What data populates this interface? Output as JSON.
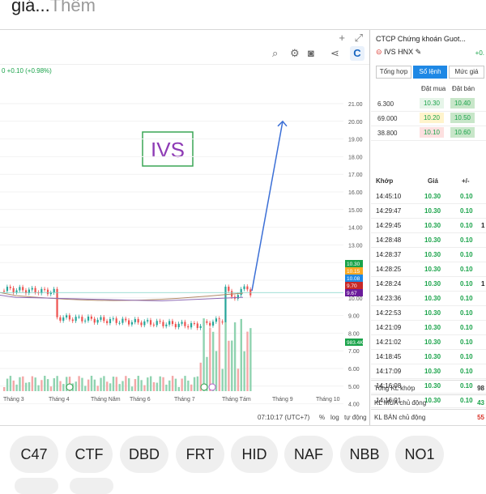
{
  "top_text": {
    "main": "giá...",
    "more": "Thêm"
  },
  "chart_toolbar": {
    "plus": "+",
    "expand": "⤢"
  },
  "chart": {
    "price_change": "0 +0.10 (+0.98%)",
    "annotation": "IVS",
    "y_ticks": [
      "21.00",
      "20.00",
      "19.00",
      "18.00",
      "17.00",
      "16.00",
      "15.00",
      "14.00",
      "13.00",
      "12.00",
      "11.00",
      "10.00",
      "9.00",
      "8.00",
      "7.00",
      "6.00",
      "5.00",
      "4.00"
    ],
    "x_ticks": [
      "Tháng 3",
      "Tháng 4",
      "Tháng Năm",
      "Tháng 6",
      "Tháng 7",
      "Tháng Tám",
      "Tháng 9",
      "Tháng 10"
    ],
    "price_tags": [
      {
        "label": "10.30",
        "color": "#1aa34a"
      },
      {
        "label": "10.15",
        "color": "#f9a825"
      },
      {
        "label": "10.08",
        "color": "#1e88e5"
      },
      {
        "label": "9.70",
        "color": "#c62828"
      },
      {
        "label": "9.67",
        "color": "#6a1b9a"
      },
      {
        "label": "983.4K",
        "color": "#1aa34a"
      }
    ],
    "time": "07:10:17 (UTC+7)",
    "percent_btn": "%",
    "log_btn": "log",
    "auto_btn": "tự động"
  },
  "panel": {
    "title": "CTCP Chứng khoán Guot...",
    "symbol": "IVS HNX",
    "change": "+0.",
    "tabs": [
      "Tổng hợp",
      "Sổ lệnh",
      "Mức giá"
    ],
    "active_tab": "Sổ lệnh",
    "order_headers": {
      "bid": "Đặt mua",
      "ask": "Đặt bán"
    },
    "order_book": [
      {
        "vol": "6.300",
        "bid": "10.30",
        "bid_bg": "#e6f5e9",
        "ask": "10.40",
        "ask_bg": "#c8e6c9"
      },
      {
        "vol": "69.000",
        "bid": "10.20",
        "bid_bg": "#fff4cc",
        "ask": "10.50",
        "ask_bg": "#c8e6c9"
      },
      {
        "vol": "38.800",
        "bid": "10.10",
        "bid_bg": "#fde0e0",
        "ask": "10.60",
        "ask_bg": "#c8e6c9"
      }
    ],
    "trade_headers": {
      "time": "Khớp",
      "price": "Giá",
      "change": "+/-"
    },
    "trades": [
      {
        "time": "14:45:10",
        "price": "10.30",
        "change": "0.10",
        "extra": ""
      },
      {
        "time": "14:29:47",
        "price": "10.30",
        "change": "0.10",
        "extra": ""
      },
      {
        "time": "14:29:45",
        "price": "10.30",
        "change": "0.10",
        "extra": "1"
      },
      {
        "time": "14:28:48",
        "price": "10.30",
        "change": "0.10",
        "extra": ""
      },
      {
        "time": "14:28:37",
        "price": "10.30",
        "change": "0.10",
        "extra": ""
      },
      {
        "time": "14:28:25",
        "price": "10.30",
        "change": "0.10",
        "extra": ""
      },
      {
        "time": "14:28:24",
        "price": "10.30",
        "change": "0.10",
        "extra": "1"
      },
      {
        "time": "14:23:36",
        "price": "10.30",
        "change": "0.10",
        "extra": ""
      },
      {
        "time": "14:22:53",
        "price": "10.30",
        "change": "0.10",
        "extra": ""
      },
      {
        "time": "14:21:09",
        "price": "10.30",
        "change": "0.10",
        "extra": ""
      },
      {
        "time": "14:21:02",
        "price": "10.30",
        "change": "0.10",
        "extra": ""
      },
      {
        "time": "14:18:45",
        "price": "10.30",
        "change": "0.10",
        "extra": ""
      },
      {
        "time": "14:17:09",
        "price": "10.30",
        "change": "0.10",
        "extra": ""
      },
      {
        "time": "14:16:08",
        "price": "10.30",
        "change": "0.10",
        "extra": ""
      },
      {
        "time": "14:16:01",
        "price": "10.30",
        "change": "0.10",
        "extra": ""
      }
    ],
    "summary": [
      {
        "label": "Tổng KL khớp",
        "value": "98"
      },
      {
        "label": "KL MUA chủ động",
        "value": "43"
      },
      {
        "label": "KL BÁN chủ động",
        "value": "55"
      }
    ]
  },
  "chips": [
    "C47",
    "CTF",
    "DBD",
    "FRT",
    "HID",
    "NAF",
    "NBB",
    "NO1"
  ]
}
